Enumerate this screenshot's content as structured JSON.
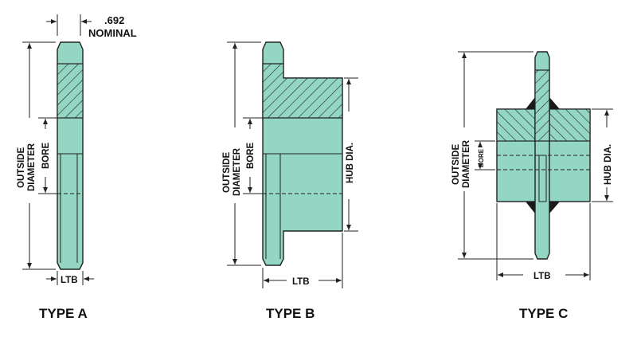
{
  "colors": {
    "part_fill": "#93d6c4",
    "line": "#222222",
    "weld": "#1a1a1a"
  },
  "labels": {
    "nominal_value": ".692",
    "nominal_text": "NOMINAL",
    "outside": "OUTSIDE",
    "diameter": "DIAMETER",
    "bore": "BORE",
    "hub_dia": "HUB DIA.",
    "ltb": "LTB"
  },
  "types": [
    "TYPE A",
    "TYPE B",
    "TYPE C"
  ]
}
